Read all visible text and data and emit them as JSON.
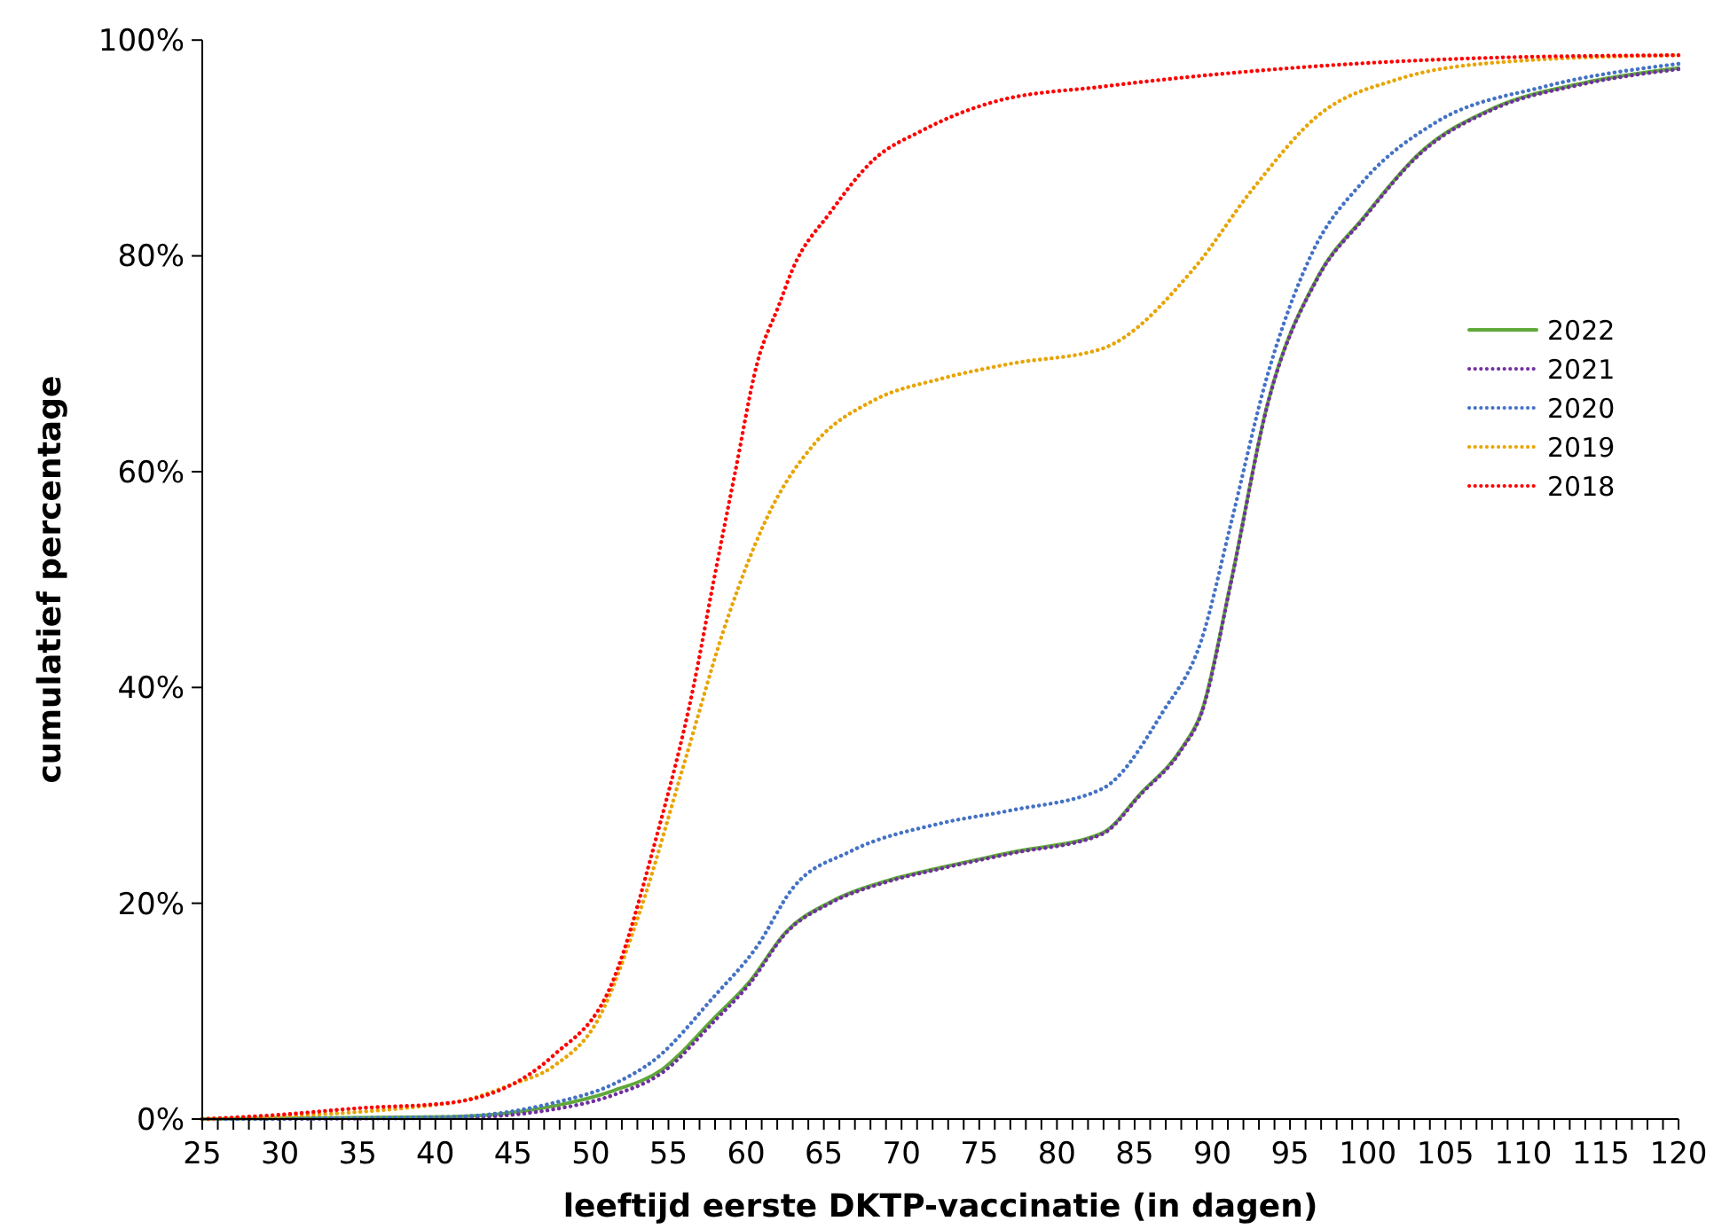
{
  "chart_data": {
    "type": "line",
    "xlabel": "leeftijd eerste DKTP-vaccinatie (in dagen)",
    "ylabel": "cumulatief percentage",
    "xlim": [
      25,
      120
    ],
    "ylim": [
      0,
      100
    ],
    "xticks": [
      25,
      {
        "value": 26,
        "label": null
      },
      {
        "value": 27,
        "label": null
      },
      {
        "value": 28,
        "label": null
      },
      {
        "value": 29,
        "label": null
      },
      30,
      {
        "value": 31,
        "label": null
      },
      {
        "value": 32,
        "label": null
      },
      {
        "value": 33,
        "label": null
      },
      {
        "value": 34,
        "label": null
      },
      35,
      {
        "value": 36,
        "label": null
      },
      {
        "value": 37,
        "label": null
      },
      {
        "value": 38,
        "label": null
      },
      {
        "value": 39,
        "label": null
      },
      40,
      {
        "value": 41,
        "label": null
      },
      {
        "value": 42,
        "label": null
      },
      {
        "value": 43,
        "label": null
      },
      {
        "value": 44,
        "label": null
      },
      45,
      {
        "value": 46,
        "label": null
      },
      {
        "value": 47,
        "label": null
      },
      {
        "value": 48,
        "label": null
      },
      {
        "value": 49,
        "label": null
      },
      50,
      {
        "value": 51,
        "label": null
      },
      {
        "value": 52,
        "label": null
      },
      {
        "value": 53,
        "label": null
      },
      {
        "value": 54,
        "label": null
      },
      55,
      {
        "value": 56,
        "label": null
      },
      {
        "value": 57,
        "label": null
      },
      {
        "value": 58,
        "label": null
      },
      {
        "value": 59,
        "label": null
      },
      60,
      {
        "value": 61,
        "label": null
      },
      {
        "value": 62,
        "label": null
      },
      {
        "value": 63,
        "label": null
      },
      {
        "value": 64,
        "label": null
      },
      65,
      {
        "value": 66,
        "label": null
      },
      {
        "value": 67,
        "label": null
      },
      {
        "value": 68,
        "label": null
      },
      {
        "value": 69,
        "label": null
      },
      70,
      {
        "value": 71,
        "label": null
      },
      {
        "value": 72,
        "label": null
      },
      {
        "value": 73,
        "label": null
      },
      {
        "value": 74,
        "label": null
      },
      75,
      {
        "value": 76,
        "label": null
      },
      {
        "value": 77,
        "label": null
      },
      {
        "value": 78,
        "label": null
      },
      {
        "value": 79,
        "label": null
      },
      80,
      {
        "value": 81,
        "label": null
      },
      {
        "value": 82,
        "label": null
      },
      {
        "value": 83,
        "label": null
      },
      {
        "value": 84,
        "label": null
      },
      85,
      {
        "value": 86,
        "label": null
      },
      {
        "value": 87,
        "label": null
      },
      {
        "value": 88,
        "label": null
      },
      {
        "value": 89,
        "label": null
      },
      90,
      {
        "value": 91,
        "label": null
      },
      {
        "value": 92,
        "label": null
      },
      {
        "value": 93,
        "label": null
      },
      {
        "value": 94,
        "label": null
      },
      95,
      {
        "value": 96,
        "label": null
      },
      {
        "value": 97,
        "label": null
      },
      {
        "value": 98,
        "label": null
      },
      {
        "value": 99,
        "label": null
      },
      100,
      {
        "value": 101,
        "label": null
      },
      {
        "value": 102,
        "label": null
      },
      {
        "value": 103,
        "label": null
      },
      {
        "value": 104,
        "label": null
      },
      105,
      {
        "value": 106,
        "label": null
      },
      {
        "value": 107,
        "label": null
      },
      {
        "value": 108,
        "label": null
      },
      {
        "value": 109,
        "label": null
      },
      110,
      {
        "value": 111,
        "label": null
      },
      {
        "value": 112,
        "label": null
      },
      {
        "value": 113,
        "label": null
      },
      {
        "value": 114,
        "label": null
      },
      115,
      {
        "value": 116,
        "label": null
      },
      {
        "value": 117,
        "label": null
      },
      {
        "value": 118,
        "label": null
      },
      {
        "value": 119,
        "label": null
      },
      120
    ],
    "yticks": [
      {
        "value": 0,
        "label": "0%"
      },
      {
        "value": 20,
        "label": "20%"
      },
      {
        "value": 40,
        "label": "40%"
      },
      {
        "value": 60,
        "label": "60%"
      },
      {
        "value": 80,
        "label": "80%"
      },
      {
        "value": 100,
        "label": "100%"
      }
    ],
    "grid": false,
    "legend": "right",
    "series": [
      {
        "name": "2022",
        "color": "#5fa83a",
        "line_style": "solid",
        "x": [
          25,
          41,
          47.6,
          51.4,
          54.6,
          57.9,
          60.2,
          62.6,
          65.4,
          69.1,
          72.5,
          77,
          82.9,
          85.4,
          88,
          89.3,
          91.2,
          93.5,
          96.8,
          99.7,
          103.4,
          108.1,
          113.8,
          120
        ],
        "values": [
          0,
          0.2,
          1.2,
          2.6,
          4.6,
          9.3,
          12.7,
          17.4,
          20.1,
          22.1,
          23.3,
          24.7,
          26.5,
          30.2,
          34.3,
          37.7,
          49.8,
          66,
          78.1,
          83.5,
          89.6,
          93.7,
          96,
          97.4
        ]
      },
      {
        "name": "2021",
        "color": "#7030a0",
        "line_style": "dotted",
        "x": [
          25,
          41,
          47.6,
          51.4,
          54.6,
          57.9,
          60.2,
          62.6,
          65.4,
          69.1,
          72.5,
          77,
          82.9,
          85.4,
          88,
          89.3,
          91.2,
          93.5,
          96.8,
          99.7,
          103.4,
          108.1,
          113.8,
          120
        ],
        "values": [
          0,
          0.1,
          0.9,
          2.2,
          4.3,
          9,
          12.5,
          17.3,
          20,
          22,
          23.2,
          24.6,
          26.4,
          30.1,
          34.2,
          37.6,
          49.7,
          65.9,
          78,
          83.4,
          89.5,
          93.6,
          95.9,
          97.3
        ]
      },
      {
        "name": "2020",
        "color": "#4472c4",
        "line_style": "dotted",
        "x": [
          25,
          41,
          47.6,
          51.4,
          54.2,
          57.9,
          60.7,
          63,
          66.7,
          72.5,
          77,
          82.9,
          86.8,
          89.3,
          91.2,
          93.5,
          96.4,
          99.7,
          104.3,
          111.4,
          120
        ],
        "values": [
          0,
          0.2,
          1.5,
          3.2,
          5.6,
          11.3,
          16,
          21.4,
          24.8,
          27.4,
          28.6,
          30.6,
          37.7,
          44.4,
          55.2,
          68.7,
          80.2,
          86.9,
          92.3,
          95.7,
          97.8
        ]
      },
      {
        "name": "2019",
        "color": "#e8a400",
        "line_style": "dotted",
        "x": [
          25,
          41,
          44.9,
          47.6,
          50.5,
          53.2,
          56,
          58.8,
          61.6,
          64.4,
          68.2,
          72.5,
          77,
          82.9,
          88.8,
          92.6,
          96.8,
          102,
          109,
          120
        ],
        "values": [
          0,
          1.5,
          3.2,
          4.9,
          9.3,
          19.4,
          32.9,
          46.4,
          56.5,
          62.6,
          66.6,
          68.6,
          70,
          71.4,
          78.8,
          86.2,
          93,
          96.4,
          98,
          98.6
        ]
      },
      {
        "name": "2018",
        "color": "#ff0000",
        "line_style": "dotted",
        "x": [
          25,
          30,
          35,
          40.9,
          47.6,
          51.4,
          54.2,
          56.6,
          57.9,
          59.3,
          60.7,
          62.1,
          63,
          65.4,
          68.2,
          71.3,
          76,
          83,
          95,
          109,
          120
        ],
        "values": [
          0,
          0.4,
          1,
          1.5,
          5.9,
          12.7,
          26,
          40,
          49.8,
          60,
          70,
          75.4,
          78.8,
          84,
          88.9,
          91.6,
          94.3,
          95.7,
          97.4,
          98.4,
          98.6
        ]
      }
    ]
  }
}
